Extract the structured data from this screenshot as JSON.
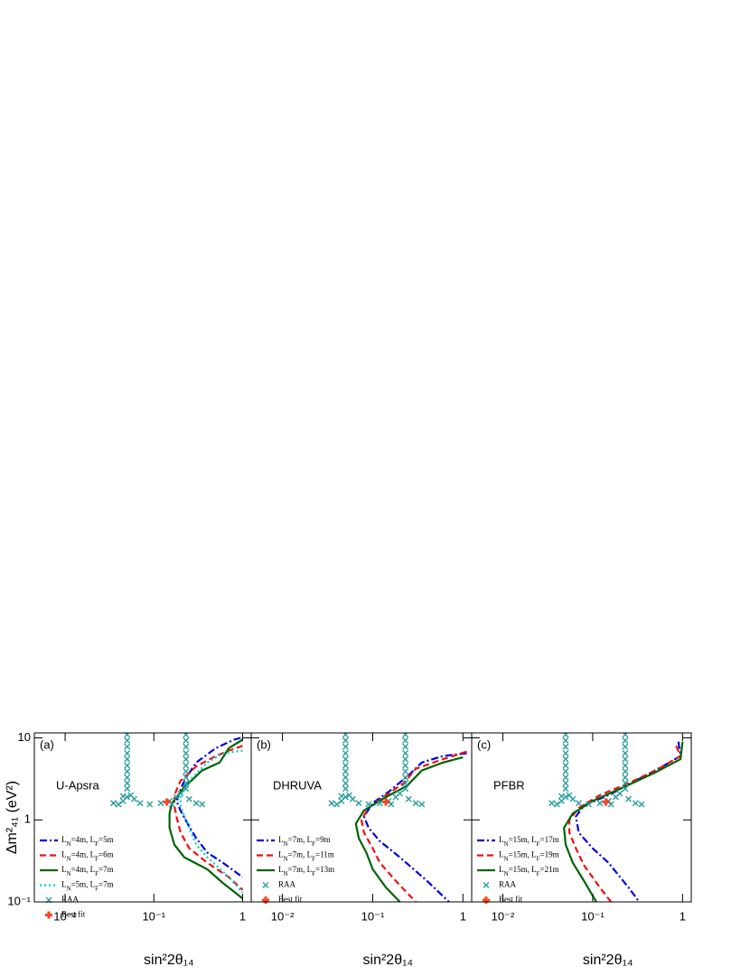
{
  "chart_data": [
    {
      "type": "line",
      "label": "(a)",
      "annotation": "U-Apsra",
      "xlabel": "sin²2θ₁₄",
      "ylabel": "Δm²₄₁ (eV²)",
      "xlog": true,
      "ylog": true,
      "xlim": [
        0.0045,
        1.25
      ],
      "ylim": [
        0.1,
        11.5
      ],
      "xticks": [
        {
          "value": 0.01,
          "label": "10⁻²"
        },
        {
          "value": 0.1,
          "label": "10⁻¹"
        },
        1
      ],
      "yticks": [
        {
          "value": 0.1,
          "label": "10⁻¹"
        },
        1,
        10
      ],
      "legend": "lower left",
      "series": [
        {
          "name": "LN=4m, LF=5m",
          "color": "#0000dd",
          "style": "dashdot",
          "x": [
            0.95,
            0.8,
            0.5,
            0.3,
            0.22,
            0.19,
            0.18,
            0.2,
            0.24,
            0.3,
            0.4,
            0.6,
            1
          ],
          "y": [
            10,
            9.5,
            7.5,
            5,
            3,
            2,
            1.7,
            1.3,
            0.9,
            0.6,
            0.4,
            0.3,
            0.2
          ]
        },
        {
          "name": "LN=4m, LF=6m",
          "color": "#ee1111",
          "style": "dashed",
          "x": [
            1,
            0.7,
            0.5,
            0.3,
            0.2,
            0.17,
            0.17,
            0.18,
            0.2,
            0.25,
            0.4,
            0.7,
            1
          ],
          "y": [
            8,
            7,
            6,
            4.5,
            3,
            2,
            1.5,
            1.1,
            0.7,
            0.45,
            0.3,
            0.2,
            0.14
          ]
        },
        {
          "name": "LN=4m, LF=7m",
          "color": "#006400",
          "style": "solid",
          "x": [
            1,
            0.7,
            0.55,
            0.35,
            0.22,
            0.16,
            0.15,
            0.15,
            0.17,
            0.22,
            0.4,
            0.6,
            1
          ],
          "y": [
            9.5,
            7.5,
            5,
            4,
            2.5,
            1.6,
            1.2,
            0.8,
            0.5,
            0.35,
            0.25,
            0.17,
            0.11
          ]
        },
        {
          "name": "LN=5m, LF=7m",
          "color": "#00cccc",
          "style": "dotted",
          "x": [
            1,
            0.6,
            0.4,
            0.25,
            0.2,
            0.2,
            0.22,
            0.25,
            0.3,
            0.4,
            0.7,
            1
          ],
          "y": [
            7,
            6.5,
            5,
            3,
            2,
            1.5,
            1.1,
            0.8,
            0.5,
            0.35,
            0.2,
            0.13
          ]
        },
        {
          "name": "RAA",
          "color": "#2a9d9d",
          "marker": "x",
          "x": [
            0.05,
            0.05,
            0.05,
            0.05,
            0.05,
            0.05,
            0.05,
            0.05,
            0.05,
            0.05,
            0.23,
            0.23,
            0.23,
            0.23,
            0.23,
            0.23,
            0.23,
            0.23,
            0.23,
            0.23,
            0.035,
            0.04,
            0.045,
            0.05,
            0.055,
            0.06,
            0.07,
            0.09,
            0.12,
            0.15,
            0.18,
            0.2,
            0.25,
            0.3,
            0.35,
            0.16,
            0.045
          ],
          "y": [
            11,
            9.3,
            7.8,
            6.5,
            5.5,
            4.6,
            3.9,
            3.3,
            2.8,
            2.4,
            11,
            9.3,
            7.8,
            6.5,
            5.5,
            4.6,
            3.9,
            3.3,
            2.8,
            2.4,
            1.6,
            1.55,
            1.7,
            1.9,
            2,
            1.8,
            1.6,
            1.55,
            1.6,
            1.7,
            1.9,
            2.1,
            1.8,
            1.6,
            1.55,
            1.55,
            1.95
          ]
        },
        {
          "name": "Best fit",
          "color": "#ff4422",
          "marker": "plus",
          "x": [
            0.14
          ],
          "y": [
            1.65
          ]
        }
      ]
    },
    {
      "type": "line",
      "label": "(b)",
      "annotation": "DHRUVA",
      "xlabel": "sin²2θ₁₄",
      "xlog": true,
      "ylog": true,
      "xlim": [
        0.0045,
        1.25
      ],
      "ylim": [
        0.1,
        11.5
      ],
      "xticks": [
        {
          "value": 0.01,
          "label": "10⁻²"
        },
        {
          "value": 0.1,
          "label": "10⁻¹"
        },
        1
      ],
      "yticks": [
        0.1,
        1,
        10
      ],
      "legend": "lower left",
      "series": [
        {
          "name": "LN=7m, LF=9m",
          "color": "#0000dd",
          "style": "dashdot",
          "x": [
            1.1,
            0.6,
            0.35,
            0.25,
            0.15,
            0.1,
            0.08,
            0.09,
            0.12,
            0.2,
            0.4,
            0.7
          ],
          "y": [
            6.5,
            6,
            5,
            3.5,
            2.2,
            1.6,
            1.1,
            0.8,
            0.55,
            0.35,
            0.18,
            0.1
          ]
        },
        {
          "name": "LN=7m, LF=11m",
          "color": "#ee1111",
          "style": "dashed",
          "x": [
            1.1,
            0.6,
            0.3,
            0.22,
            0.14,
            0.09,
            0.075,
            0.08,
            0.1,
            0.12,
            0.18,
            0.3
          ],
          "y": [
            6.8,
            5.5,
            4.2,
            2.8,
            2,
            1.4,
            1,
            0.7,
            0.45,
            0.3,
            0.18,
            0.1
          ]
        },
        {
          "name": "LN=7m, LF=13m",
          "color": "#006400",
          "style": "solid",
          "x": [
            1,
            0.6,
            0.35,
            0.24,
            0.14,
            0.08,
            0.065,
            0.07,
            0.085,
            0.1,
            0.14,
            0.2
          ],
          "y": [
            5.8,
            5,
            4,
            2.6,
            1.9,
            1.3,
            0.9,
            0.6,
            0.4,
            0.25,
            0.15,
            0.1
          ]
        },
        {
          "name": "RAA",
          "color": "#2a9d9d",
          "marker": "x",
          "x": [
            0.05,
            0.05,
            0.05,
            0.05,
            0.05,
            0.05,
            0.05,
            0.05,
            0.05,
            0.05,
            0.23,
            0.23,
            0.23,
            0.23,
            0.23,
            0.23,
            0.23,
            0.23,
            0.23,
            0.23,
            0.035,
            0.04,
            0.045,
            0.05,
            0.055,
            0.06,
            0.07,
            0.09,
            0.12,
            0.15,
            0.18,
            0.2,
            0.25,
            0.3,
            0.35,
            0.16,
            0.045
          ],
          "y": [
            11,
            9.3,
            7.8,
            6.5,
            5.5,
            4.6,
            3.9,
            3.3,
            2.8,
            2.4,
            11,
            9.3,
            7.8,
            6.5,
            5.5,
            4.6,
            3.9,
            3.3,
            2.8,
            2.4,
            1.6,
            1.55,
            1.7,
            1.9,
            2,
            1.8,
            1.6,
            1.55,
            1.6,
            1.7,
            1.9,
            2.1,
            1.8,
            1.6,
            1.55,
            1.55,
            1.95
          ]
        },
        {
          "name": "Best fit",
          "color": "#ff4422",
          "marker": "plus",
          "x": [
            0.14
          ],
          "y": [
            1.65
          ]
        }
      ]
    },
    {
      "type": "line",
      "label": "(c)",
      "annotation": "PFBR",
      "xlabel": "sin²2θ₁₄",
      "xlog": true,
      "ylog": true,
      "xlim": [
        0.0045,
        1.25
      ],
      "ylim": [
        0.1,
        11.5
      ],
      "xticks": [
        {
          "value": 0.01,
          "label": "10⁻²"
        },
        {
          "value": 0.1,
          "label": "10⁻¹"
        },
        1
      ],
      "yticks": [
        0.1,
        1,
        10
      ],
      "legend": "lower left",
      "series": [
        {
          "name": "LN=15m, LF=17m",
          "color": "#0000dd",
          "style": "dashdot",
          "x": [
            0.9,
            0.95,
            0.6,
            0.3,
            0.15,
            0.08,
            0.065,
            0.07,
            0.1,
            0.15,
            0.25,
            0.33
          ],
          "y": [
            9,
            6,
            4.5,
            3,
            2,
            1.5,
            1.1,
            0.7,
            0.45,
            0.3,
            0.15,
            0.1
          ]
        },
        {
          "name": "LN=15m, LF=19m",
          "color": "#ee1111",
          "style": "dashed",
          "x": [
            0.85,
            0.95,
            0.5,
            0.25,
            0.12,
            0.07,
            0.055,
            0.055,
            0.065,
            0.08,
            0.12,
            0.16
          ],
          "y": [
            8,
            6,
            4,
            2.8,
            2,
            1.4,
            1,
            0.7,
            0.45,
            0.28,
            0.15,
            0.1
          ]
        },
        {
          "name": "LN=15m, LF=21m",
          "color": "#006400",
          "style": "solid",
          "x": [
            1,
            0.95,
            0.5,
            0.22,
            0.1,
            0.06,
            0.048,
            0.05,
            0.06,
            0.08,
            0.11
          ],
          "y": [
            9,
            5.5,
            3.8,
            2.5,
            1.7,
            1.2,
            0.8,
            0.5,
            0.3,
            0.18,
            0.1
          ]
        },
        {
          "name": "RAA",
          "color": "#2a9d9d",
          "marker": "x",
          "x": [
            0.05,
            0.05,
            0.05,
            0.05,
            0.05,
            0.05,
            0.05,
            0.05,
            0.05,
            0.05,
            0.23,
            0.23,
            0.23,
            0.23,
            0.23,
            0.23,
            0.23,
            0.23,
            0.23,
            0.23,
            0.035,
            0.04,
            0.045,
            0.05,
            0.055,
            0.06,
            0.07,
            0.09,
            0.12,
            0.15,
            0.18,
            0.2,
            0.25,
            0.3,
            0.35,
            0.16,
            0.045
          ],
          "y": [
            11,
            9.3,
            7.8,
            6.5,
            5.5,
            4.6,
            3.9,
            3.3,
            2.8,
            2.4,
            11,
            9.3,
            7.8,
            6.5,
            5.5,
            4.6,
            3.9,
            3.3,
            2.8,
            2.4,
            1.6,
            1.55,
            1.7,
            1.9,
            2,
            1.8,
            1.6,
            1.55,
            1.6,
            1.7,
            1.9,
            2.1,
            1.8,
            1.6,
            1.55,
            1.55,
            1.95
          ]
        },
        {
          "name": "Best fit",
          "color": "#ff4422",
          "marker": "plus",
          "x": [
            0.14
          ],
          "y": [
            1.65
          ]
        }
      ]
    }
  ]
}
